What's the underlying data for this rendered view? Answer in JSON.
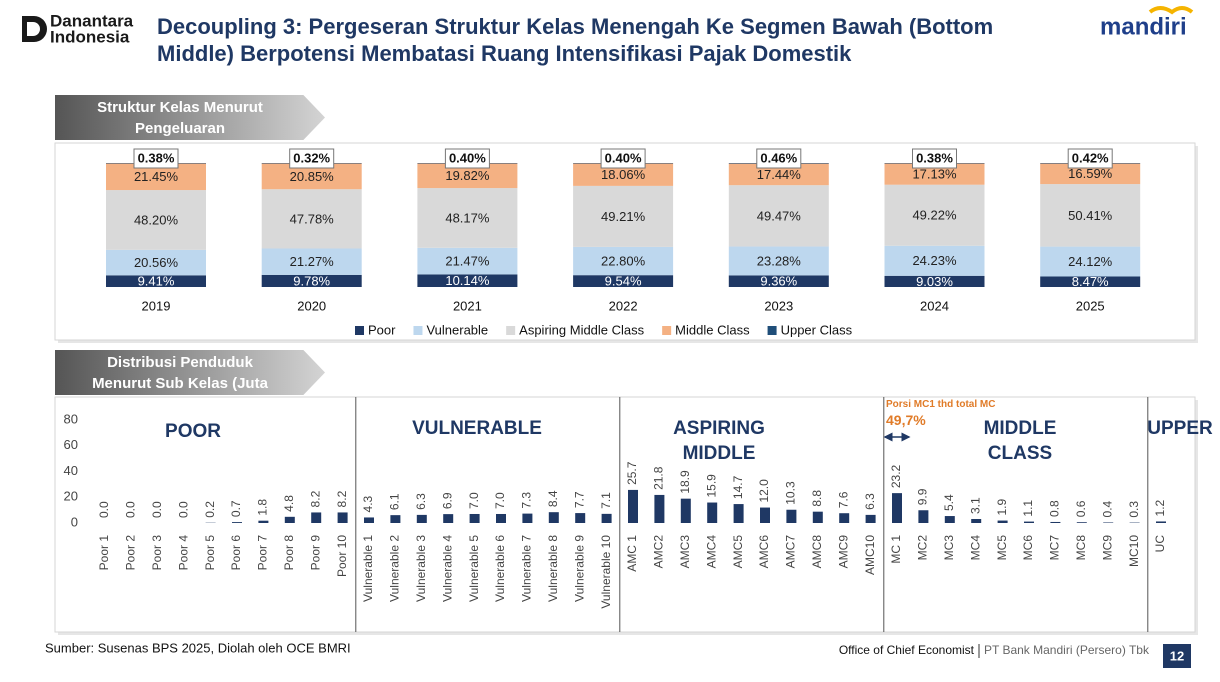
{
  "header": {
    "brand_left": {
      "line1": "Danantara",
      "line2": "Indonesia"
    },
    "title": "Decoupling 3: Pergeseran Struktur Kelas Menengah Ke Segmen Bawah (Bottom Middle) Berpotensi Membatasi Ruang Intensifikasi Pajak Domestik",
    "brand_right": "mandiri"
  },
  "chart_data": [
    {
      "type": "stacked_bar",
      "title": "Struktur Kelas Menurut Pengeluaran",
      "categories": [
        "2019",
        "2020",
        "2021",
        "2022",
        "2023",
        "2024",
        "2025"
      ],
      "series": [
        {
          "name": "Poor",
          "color": "#1f3864",
          "values": [
            9.41,
            9.78,
            10.14,
            9.54,
            9.36,
            9.03,
            8.47
          ],
          "value_labels": [
            "9.41%",
            "9.78%",
            "10.14%",
            "9.54%",
            "9.36%",
            "9.03%",
            "8.47%"
          ]
        },
        {
          "name": "Vulnerable",
          "color": "#bdd7ee",
          "values": [
            20.56,
            21.27,
            21.47,
            22.8,
            23.28,
            24.23,
            24.12
          ],
          "value_labels": [
            "20.56%",
            "21.27%",
            "21.47%",
            "22.80%",
            "23.28%",
            "24.23%",
            "24.12%"
          ]
        },
        {
          "name": "Aspiring Middle Class",
          "color": "#d9d9d9",
          "values": [
            48.2,
            47.78,
            48.17,
            49.21,
            49.47,
            49.22,
            50.41
          ],
          "value_labels": [
            "48.20%",
            "47.78%",
            "48.17%",
            "49.21%",
            "49.47%",
            "49.22%",
            "50.41%"
          ]
        },
        {
          "name": "Middle Class",
          "color": "#f4b183",
          "values": [
            21.45,
            20.85,
            19.82,
            18.06,
            17.44,
            17.13,
            16.59
          ],
          "value_labels": [
            "21.45%",
            "20.85%",
            "19.82%",
            "18.06%",
            "17.44%",
            "17.13%",
            "16.59%"
          ]
        },
        {
          "name": "Upper Class",
          "color": "#1f4e79",
          "values": [
            0.38,
            0.32,
            0.4,
            0.4,
            0.46,
            0.38,
            0.42
          ],
          "value_labels": [
            "0.38%",
            "0.32%",
            "0.40%",
            "0.40%",
            "0.46%",
            "0.38%",
            "0.42%"
          ]
        }
      ]
    },
    {
      "type": "bar",
      "title": "Distribusi Penduduk Menurut Sub Kelas (Juta Orang)",
      "categories": [
        "Poor 1",
        "Poor 2",
        "Poor 3",
        "Poor 4",
        "Poor 5",
        "Poor 6",
        "Poor 7",
        "Poor 8",
        "Poor 9",
        "Poor 10",
        "Vulnerable 1",
        "Vulnerable 2",
        "Vulnerable 3",
        "Vulnerable 4",
        "Vulnerable 5",
        "Vulnerable 6",
        "Vulnerable 7",
        "Vulnerable 8",
        "Vulnerable 9",
        "Vulnerable 10",
        "AMC 1",
        "AMC2",
        "AMC3",
        "AMC4",
        "AMC5",
        "AMC6",
        "AMC7",
        "AMC8",
        "AMC9",
        "AMC10",
        "MC 1",
        "MC2",
        "MC3",
        "MC4",
        "MC5",
        "MC6",
        "MC7",
        "MC8",
        "MC9",
        "MC10",
        "UC"
      ],
      "values": [
        0.0,
        0.0,
        0.0,
        0.0,
        0.2,
        0.7,
        1.8,
        4.8,
        8.2,
        8.2,
        4.3,
        6.1,
        6.3,
        6.9,
        7.0,
        7.0,
        7.3,
        8.4,
        7.7,
        7.1,
        25.7,
        21.8,
        18.9,
        15.9,
        14.7,
        12.0,
        10.3,
        8.8,
        7.6,
        6.3,
        23.2,
        9.9,
        5.4,
        3.1,
        1.9,
        1.1,
        0.8,
        0.6,
        0.4,
        0.3,
        1.2
      ],
      "value_labels": [
        "0.0",
        "0.0",
        "0.0",
        "0.0",
        "0.2",
        "0.7",
        "1.8",
        "4.8",
        "8.2",
        "8.2",
        "4.3",
        "6.1",
        "6.3",
        "6.9",
        "7.0",
        "7.0",
        "7.3",
        "8.4",
        "7.7",
        "7.1",
        "25.7",
        "21.8",
        "18.9",
        "15.9",
        "14.7",
        "12.0",
        "10.3",
        "8.8",
        "7.6",
        "6.3",
        "23.2",
        "9.9",
        "5.4",
        "3.1",
        "1.9",
        "1.1",
        "0.8",
        "0.6",
        "0.4",
        "0.3",
        "1.2"
      ],
      "color": "#1f3864",
      "ylim": [
        0,
        80
      ],
      "yticks": [
        0,
        20,
        40,
        60,
        80
      ],
      "annotations": [
        "POOR",
        "VULNERABLE",
        "ASPIRING MIDDLE",
        "MIDDLE CLASS",
        "UPPER",
        "Porsi MC1 thd total MC",
        "49,7%"
      ]
    }
  ],
  "footer": {
    "source": "Sumber: Susenas BPS 2025, Diolah oleh OCE BMRI",
    "office": "Office of Chief Economist",
    "company": "PT Bank Mandiri (Persero) Tbk",
    "page": "12"
  }
}
